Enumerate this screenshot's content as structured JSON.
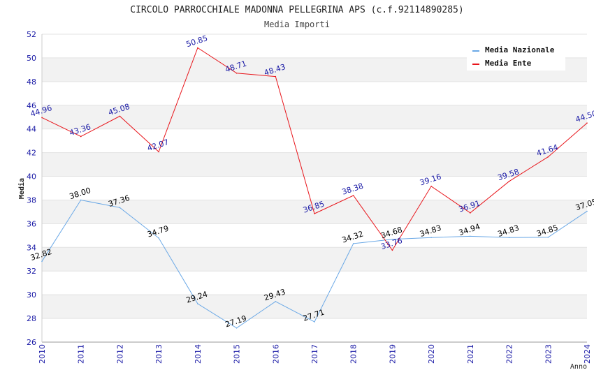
{
  "chart_data": {
    "type": "line",
    "title": "CIRCOLO PARROCCHIALE MADONNA PELLEGRINA APS (c.f.92114890285)",
    "subtitle": "Media Importi",
    "xlabel": "Anno",
    "ylabel": "Media",
    "ylim": [
      26,
      52
    ],
    "yticks": [
      26,
      28,
      30,
      32,
      34,
      36,
      38,
      40,
      42,
      44,
      46,
      48,
      50,
      52
    ],
    "categories": [
      "2010",
      "2011",
      "2012",
      "2013",
      "2014",
      "2015",
      "2016",
      "2017",
      "2018",
      "2019",
      "2020",
      "2021",
      "2022",
      "2023",
      "2024"
    ],
    "grid": true,
    "legend_position": "top-right",
    "series": [
      {
        "name": "Media Nazionale",
        "color": "#6aa8e6",
        "label_color": "#000000",
        "values": [
          32.82,
          38.0,
          37.36,
          34.79,
          29.24,
          27.19,
          29.43,
          27.71,
          34.32,
          34.68,
          34.83,
          34.94,
          34.83,
          34.85,
          37.05
        ],
        "labels": [
          "32.82",
          "38.00",
          "37.36",
          "34.79",
          "29.24",
          "27.19",
          "29.43",
          "27.71",
          "34.32",
          "34.68",
          "34.83",
          "34.94",
          "34.83",
          "34.85",
          "37.05"
        ]
      },
      {
        "name": "Media Ente",
        "color": "#e8141a",
        "label_color": "#1a1aa6",
        "values": [
          44.96,
          43.36,
          45.08,
          42.07,
          50.85,
          48.71,
          48.43,
          36.85,
          38.38,
          33.76,
          39.16,
          36.91,
          39.58,
          41.64,
          44.5
        ],
        "labels": [
          "44.96",
          "43.36",
          "45.08",
          "42.07",
          "50.85",
          "48.71",
          "48.43",
          "36.85",
          "38.38",
          "33.76",
          "39.16",
          "36.91",
          "39.58",
          "41.64",
          "44.50"
        ]
      }
    ]
  }
}
